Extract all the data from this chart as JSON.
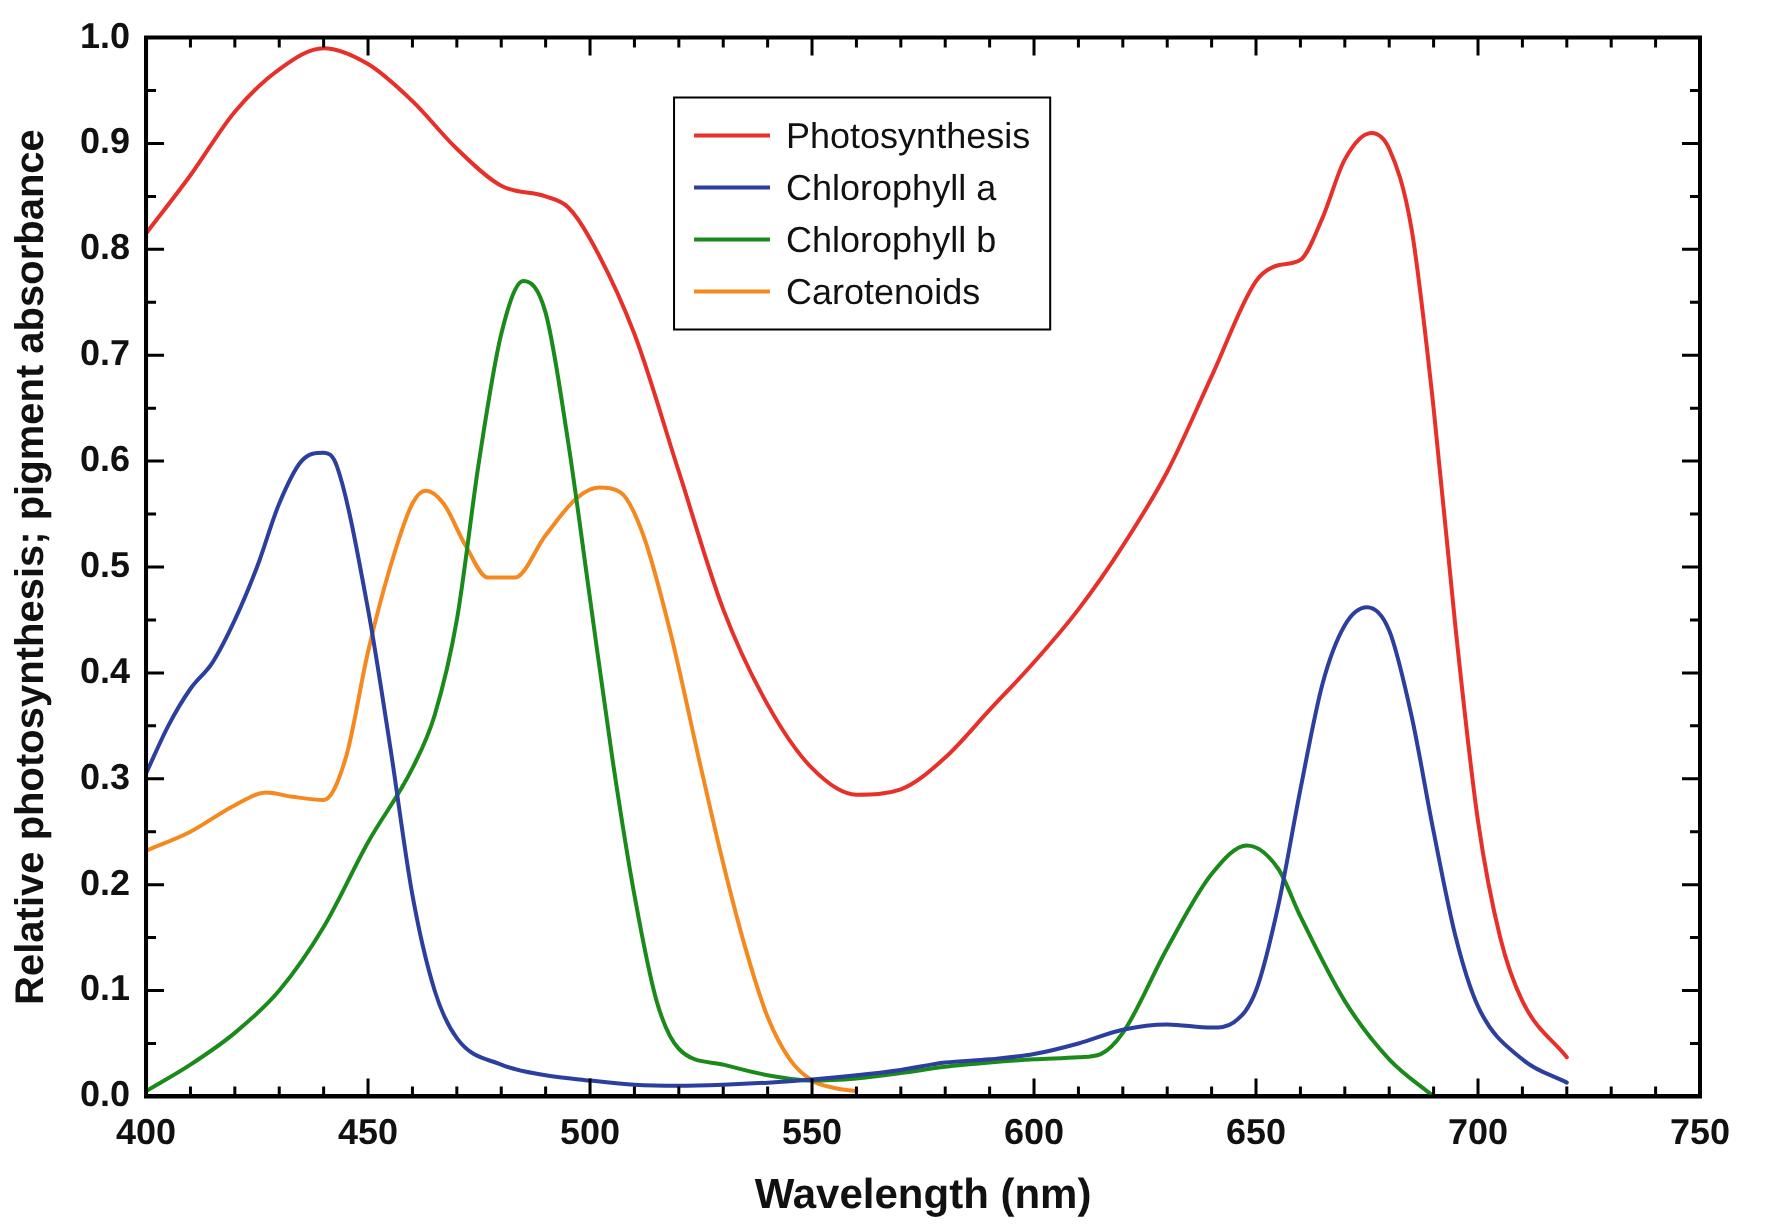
{
  "chart_data": {
    "type": "line",
    "xlabel": "Wavelength (nm)",
    "ylabel": "Relative photosynthesis; pigment absorbance",
    "xlim": [
      400,
      750
    ],
    "ylim": [
      0,
      1.0
    ],
    "xticks": [
      400,
      {
        "value": 410,
        "label": null
      },
      {
        "value": 420,
        "label": null
      },
      {
        "value": 430,
        "label": null
      },
      {
        "value": 440,
        "label": null
      },
      450,
      {
        "value": 460,
        "label": null
      },
      {
        "value": 470,
        "label": null
      },
      {
        "value": 480,
        "label": null
      },
      {
        "value": 490,
        "label": null
      },
      500,
      {
        "value": 510,
        "label": null
      },
      {
        "value": 520,
        "label": null
      },
      {
        "value": 530,
        "label": null
      },
      {
        "value": 540,
        "label": null
      },
      550,
      {
        "value": 560,
        "label": null
      },
      {
        "value": 570,
        "label": null
      },
      {
        "value": 580,
        "label": null
      },
      {
        "value": 590,
        "label": null
      },
      600,
      {
        "value": 610,
        "label": null
      },
      {
        "value": 620,
        "label": null
      },
      {
        "value": 630,
        "label": null
      },
      {
        "value": 640,
        "label": null
      },
      650,
      {
        "value": 660,
        "label": null
      },
      {
        "value": 670,
        "label": null
      },
      {
        "value": 680,
        "label": null
      },
      {
        "value": 690,
        "label": null
      },
      700,
      {
        "value": 710,
        "label": null
      },
      {
        "value": 720,
        "label": null
      },
      {
        "value": 730,
        "label": null
      },
      {
        "value": 740,
        "label": null
      },
      750
    ],
    "yticks": [
      {
        "value": 0,
        "label": "0.0"
      },
      {
        "value": 0.05,
        "label": null
      },
      0.1,
      {
        "value": 0.15,
        "label": null
      },
      0.2,
      {
        "value": 0.25,
        "label": null
      },
      0.3,
      {
        "value": 0.35,
        "label": null
      },
      0.4,
      {
        "value": 0.45,
        "label": null
      },
      0.5,
      {
        "value": 0.55,
        "label": null
      },
      0.6,
      {
        "value": 0.65,
        "label": null
      },
      0.7,
      {
        "value": 0.75,
        "label": null
      },
      0.8,
      {
        "value": 0.85,
        "label": null
      },
      0.9,
      {
        "value": 0.95,
        "label": null
      },
      {
        "value": 1.0,
        "label": "1.0"
      }
    ],
    "grid": false,
    "legend": "top",
    "marker": "none",
    "line_style": "solid",
    "series": [
      {
        "name": "Photosynthesis",
        "color": "#e8302a",
        "x": [
          400,
          410,
          420,
          430,
          440,
          450,
          460,
          470,
          480,
          490,
          495,
          500,
          510,
          520,
          530,
          540,
          550,
          560,
          570,
          580,
          590,
          600,
          610,
          620,
          630,
          640,
          650,
          655,
          660,
          665,
          670,
          676,
          680,
          685,
          690,
          695,
          700,
          705,
          710,
          720
        ],
        "values": [
          0.815,
          0.87,
          0.93,
          0.97,
          0.99,
          0.975,
          0.94,
          0.895,
          0.86,
          0.85,
          0.84,
          0.81,
          0.72,
          0.59,
          0.46,
          0.37,
          0.31,
          0.285,
          0.29,
          0.32,
          0.365,
          0.41,
          0.46,
          0.52,
          0.59,
          0.68,
          0.77,
          0.785,
          0.79,
          0.83,
          0.885,
          0.91,
          0.895,
          0.82,
          0.65,
          0.44,
          0.26,
          0.15,
          0.09,
          0.037
        ]
      },
      {
        "name": "Chlorophyll a",
        "color": "#2c3e9e",
        "x": [
          400,
          405,
          410,
          415,
          420,
          425,
          430,
          435,
          440,
          443,
          450,
          455,
          460,
          465,
          470,
          480,
          490,
          500,
          510,
          520,
          530,
          540,
          550,
          560,
          570,
          580,
          590,
          600,
          610,
          620,
          630,
          640,
          645,
          650,
          655,
          660,
          665,
          670,
          675,
          680,
          685,
          690,
          695,
          700,
          710,
          720
        ],
        "values": [
          0.305,
          0.35,
          0.385,
          0.41,
          0.45,
          0.5,
          0.56,
          0.6,
          0.608,
          0.595,
          0.46,
          0.33,
          0.19,
          0.1,
          0.055,
          0.03,
          0.02,
          0.015,
          0.011,
          0.01,
          0.011,
          0.013,
          0.016,
          0.02,
          0.025,
          0.032,
          0.035,
          0.04,
          0.05,
          0.063,
          0.068,
          0.065,
          0.07,
          0.1,
          0.18,
          0.29,
          0.39,
          0.445,
          0.462,
          0.44,
          0.36,
          0.25,
          0.15,
          0.085,
          0.035,
          0.013
        ]
      },
      {
        "name": "Chlorophyll b",
        "color": "#1a8a1a",
        "x": [
          400,
          410,
          420,
          430,
          440,
          450,
          460,
          465,
          470,
          475,
          480,
          485,
          490,
          495,
          500,
          505,
          510,
          515,
          520,
          530,
          540,
          550,
          560,
          570,
          580,
          590,
          600,
          610,
          615,
          620,
          630,
          640,
          648,
          655,
          660,
          670,
          680,
          690
        ],
        "values": [
          0.005,
          0.03,
          0.06,
          0.1,
          0.16,
          0.24,
          0.31,
          0.36,
          0.45,
          0.6,
          0.72,
          0.77,
          0.74,
          0.62,
          0.47,
          0.32,
          0.19,
          0.09,
          0.045,
          0.03,
          0.02,
          0.015,
          0.017,
          0.022,
          0.028,
          0.032,
          0.035,
          0.037,
          0.04,
          0.06,
          0.14,
          0.21,
          0.237,
          0.215,
          0.17,
          0.09,
          0.035,
          0.0
        ]
      },
      {
        "name": "Carotenoids",
        "color": "#f5891f",
        "x": [
          400,
          410,
          420,
          427,
          433,
          440,
          445,
          450,
          455,
          460,
          463,
          467,
          472,
          477,
          483,
          490,
          497,
          502,
          507,
          512,
          518,
          525,
          530,
          535,
          540,
          545,
          550,
          555,
          560
        ],
        "values": [
          0.232,
          0.25,
          0.275,
          0.287,
          0.283,
          0.28,
          0.32,
          0.42,
          0.5,
          0.56,
          0.572,
          0.56,
          0.52,
          0.49,
          0.49,
          0.53,
          0.565,
          0.575,
          0.57,
          0.53,
          0.44,
          0.31,
          0.22,
          0.14,
          0.075,
          0.035,
          0.015,
          0.008,
          0.005
        ]
      }
    ]
  }
}
